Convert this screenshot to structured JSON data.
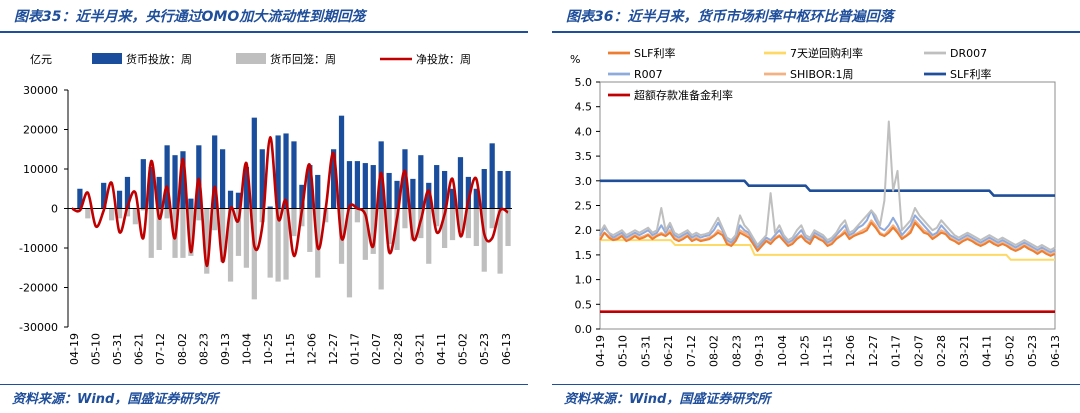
{
  "charts": [
    {
      "figure_title": "图表35：近半月来，央行通过OMO加大流动性到期回笼",
      "source": "资料来源：Wind，国盛证券研究所",
      "chart_data": {
        "type": "bar",
        "ylabel": "亿元",
        "ylim": [
          -30000,
          30000
        ],
        "yticks": [
          -30000,
          -20000,
          -10000,
          0,
          10000,
          20000,
          30000
        ],
        "x_tick_labels": [
          "04-19",
          "05-10",
          "05-31",
          "06-21",
          "07-12",
          "08-02",
          "08-23",
          "09-13",
          "10-04",
          "10-25",
          "11-15",
          "12-06",
          "12-27",
          "01-17",
          "02-07",
          "02-28",
          "03-21",
          "04-11",
          "05-02",
          "05-23",
          "06-13"
        ],
        "legend": [
          "货币投放：周",
          "货币回笼：周",
          "净投放：周"
        ],
        "series": [
          {
            "name": "货币投放：周",
            "type": "bar",
            "color": "#1a4e9c",
            "values": [
              0,
              5000,
              0,
              0,
              6500,
              0,
              4500,
              8000,
              0,
              12500,
              10500,
              8000,
              16000,
              13500,
              14500,
              2500,
              16000,
              0,
              18500,
              15000,
              4500,
              4000,
              10500,
              23000,
              15000,
              500,
              18500,
              19000,
              17000,
              6000,
              11000,
              8500,
              0,
              15000,
              23500,
              12000,
              12000,
              11500,
              11000,
              17000,
              9000,
              7000,
              15000,
              7500,
              13500,
              6500,
              11000,
              9500,
              5000,
              13000,
              8000,
              5000,
              10000,
              16500,
              9500,
              9500
            ]
          },
          {
            "name": "货币回笼：周",
            "type": "bar",
            "color": "#bfbfbf",
            "values": [
              0,
              -500,
              -2500,
              0,
              0,
              -3000,
              -2500,
              -2000,
              -4000,
              -500,
              -12500,
              -10500,
              -2500,
              -12500,
              -12500,
              -12000,
              -3000,
              -16500,
              -5500,
              -13500,
              -18500,
              -12000,
              -15000,
              -23000,
              -3500,
              -17500,
              -18500,
              -18000,
              -7000,
              -4500,
              -11000,
              -17500,
              -3500,
              0,
              -14000,
              -22500,
              -3500,
              -13000,
              -11500,
              -20500,
              -9000,
              -10500,
              -5000,
              -8000,
              -7500,
              -14000,
              -4500,
              -10000,
              -8000,
              -6000,
              -7500,
              -9500,
              -16000,
              -5000,
              -16500,
              -9500
            ]
          },
          {
            "name": "净投放：周",
            "type": "line",
            "color": "#c00000",
            "values": [
              0,
              -500,
              4000,
              -4500,
              -500,
              6500,
              -6000,
              500,
              4000,
              -7500,
              12000,
              -2500,
              5500,
              -7500,
              12500,
              -11000,
              7500,
              -14500,
              5500,
              -13500,
              0,
              -3000,
              11500,
              -9500,
              -4500,
              18000,
              -2500,
              2000,
              -12000,
              -500,
              11000,
              -10000,
              0,
              14000,
              -7500,
              500,
              0,
              -1500,
              -9500,
              9000,
              -11000,
              -2500,
              9500,
              -7500,
              -3000,
              4500,
              -6000,
              -1500,
              7500,
              -7000,
              2000,
              7500,
              -6500,
              -7500,
              -500,
              -1000
            ]
          }
        ]
      }
    },
    {
      "figure_title": "图表36：近半月来，货币市场利率中枢环比普遍回落",
      "source": "资料来源：Wind，国盛证券研究所",
      "chart_data": {
        "type": "line",
        "ylabel": "%",
        "ylim": [
          0,
          5.0
        ],
        "yticks": [
          "0.0",
          "0.5",
          "1.0",
          "1.5",
          "2.0",
          "2.5",
          "3.0",
          "3.5",
          "4.0",
          "4.5",
          "5.0"
        ],
        "x_tick_labels": [
          "04-19",
          "05-10",
          "05-31",
          "06-21",
          "07-12",
          "08-02",
          "08-23",
          "09-13",
          "10-04",
          "10-25",
          "11-15",
          "12-06",
          "12-27",
          "01-17",
          "02-07",
          "02-28",
          "03-21",
          "04-11",
          "05-02",
          "05-23",
          "06-13"
        ],
        "legend": [
          "SLF利率",
          "7天逆回购利率",
          "DR007",
          "R007",
          "SHIBOR:1周",
          "SLF利率",
          "超额存款准备金利率"
        ],
        "series": [
          {
            "name": "超额存款准备金利率",
            "color": "#c00000",
            "values": [
              0.35,
              0.35
            ]
          },
          {
            "name": "7天逆回购利率",
            "color": "#ffd966",
            "values": [
              1.8,
              1.8,
              1.8,
              1.8,
              1.8,
              1.8,
              1.8,
              1.8,
              1.8,
              1.8,
              1.8,
              1.8,
              1.8,
              1.8,
              1.8,
              1.8,
              1.8,
              1.7,
              1.7,
              1.7,
              1.7,
              1.7,
              1.7,
              1.7,
              1.7,
              1.7,
              1.7,
              1.7,
              1.7,
              1.7,
              1.7,
              1.7,
              1.7,
              1.7,
              1.7,
              1.5,
              1.5,
              1.5,
              1.5,
              1.5,
              1.5,
              1.5,
              1.5,
              1.5,
              1.5,
              1.5,
              1.5,
              1.5,
              1.5,
              1.5,
              1.5,
              1.5,
              1.5,
              1.5,
              1.5,
              1.5,
              1.5,
              1.5,
              1.5,
              1.5,
              1.5,
              1.5,
              1.5,
              1.5,
              1.5,
              1.5,
              1.5,
              1.5,
              1.5,
              1.5,
              1.5,
              1.5,
              1.5,
              1.5,
              1.5,
              1.5,
              1.5,
              1.5,
              1.5,
              1.5,
              1.5,
              1.5,
              1.5,
              1.5,
              1.5,
              1.5,
              1.5,
              1.5,
              1.5,
              1.5,
              1.5,
              1.5,
              1.5,
              1.4,
              1.4,
              1.4,
              1.4,
              1.4,
              1.4,
              1.4,
              1.4,
              1.4,
              1.4,
              1.4
            ]
          },
          {
            "name": "SLF利率",
            "color": "#1f4e9b",
            "values": [
              3.0,
              3.0,
              3.0,
              3.0,
              3.0,
              3.0,
              3.0,
              3.0,
              3.0,
              3.0,
              3.0,
              3.0,
              3.0,
              3.0,
              3.0,
              3.0,
              3.0,
              3.0,
              3.0,
              3.0,
              3.0,
              3.0,
              3.0,
              3.0,
              3.0,
              3.0,
              3.0,
              3.0,
              3.0,
              3.0,
              3.0,
              3.0,
              3.0,
              3.0,
              2.9,
              2.9,
              2.9,
              2.9,
              2.9,
              2.9,
              2.9,
              2.9,
              2.9,
              2.9,
              2.9,
              2.9,
              2.9,
              2.9,
              2.8,
              2.8,
              2.8,
              2.8,
              2.8,
              2.8,
              2.8,
              2.8,
              2.8,
              2.8,
              2.8,
              2.8,
              2.8,
              2.8,
              2.8,
              2.8,
              2.8,
              2.8,
              2.8,
              2.8,
              2.8,
              2.8,
              2.8,
              2.8,
              2.8,
              2.8,
              2.8,
              2.8,
              2.8,
              2.8,
              2.8,
              2.8,
              2.8,
              2.8,
              2.8,
              2.8,
              2.8,
              2.8,
              2.8,
              2.8,
              2.8,
              2.8,
              2.7,
              2.7,
              2.7,
              2.7,
              2.7,
              2.7,
              2.7,
              2.7,
              2.7,
              2.7,
              2.7,
              2.7,
              2.7,
              2.7,
              2.7
            ]
          },
          {
            "name": "SHIBOR:1周",
            "color": "#f4b183",
            "values": [
              1.85,
              1.95,
              1.88,
              1.82,
              1.85,
              1.9,
              1.8,
              1.85,
              1.9,
              1.85,
              1.88,
              1.92,
              1.85,
              1.9,
              1.95,
              1.9,
              2.0,
              1.85,
              1.8,
              1.85,
              1.9,
              1.8,
              1.85,
              1.8,
              1.82,
              1.85,
              1.9,
              2.0,
              1.95,
              1.75,
              1.7,
              1.8,
              2.0,
              1.95,
              1.9,
              1.75,
              1.6,
              1.7,
              1.8,
              1.75,
              1.85,
              1.9,
              1.8,
              1.7,
              1.75,
              1.85,
              1.9,
              1.8,
              1.75,
              1.9,
              1.85,
              1.8,
              1.7,
              1.75,
              1.85,
              1.9,
              2.0,
              1.85,
              1.9,
              1.95,
              2.0,
              2.05,
              2.2,
              2.1,
              1.95,
              1.9,
              2.0,
              2.1,
              2.0,
              1.85,
              1.9,
              2.0,
              2.2,
              2.1,
              2.0,
              1.95,
              1.85,
              1.9,
              2.0,
              1.95,
              1.85,
              1.8,
              1.75,
              1.8,
              1.85,
              1.8,
              1.75,
              1.7,
              1.75,
              1.8,
              1.75,
              1.7,
              1.75,
              1.7,
              1.65,
              1.6,
              1.65,
              1.7,
              1.65,
              1.6,
              1.55,
              1.6,
              1.55,
              1.5,
              1.55
            ]
          },
          {
            "name": "R007",
            "color": "#8faadc",
            "values": [
              1.9,
              2.05,
              1.95,
              1.85,
              1.9,
              1.95,
              1.85,
              1.9,
              1.95,
              1.9,
              1.95,
              2.0,
              1.9,
              1.95,
              2.1,
              1.95,
              2.1,
              1.9,
              1.85,
              1.9,
              1.95,
              1.85,
              1.9,
              1.85,
              1.88,
              1.9,
              2.0,
              2.15,
              2.0,
              1.8,
              1.75,
              1.85,
              2.1,
              2.0,
              1.95,
              1.8,
              1.65,
              1.75,
              1.85,
              1.8,
              1.9,
              2.0,
              1.85,
              1.75,
              1.8,
              1.9,
              2.0,
              1.85,
              1.8,
              1.95,
              1.9,
              1.85,
              1.75,
              1.8,
              1.9,
              2.0,
              2.1,
              1.9,
              1.95,
              2.05,
              2.1,
              2.2,
              2.4,
              2.2,
              2.05,
              2.0,
              2.1,
              2.25,
              2.1,
              1.9,
              2.0,
              2.1,
              2.3,
              2.2,
              2.1,
              2.0,
              1.9,
              1.95,
              2.1,
              2.0,
              1.9,
              1.85,
              1.8,
              1.85,
              1.9,
              1.85,
              1.8,
              1.75,
              1.8,
              1.85,
              1.8,
              1.75,
              1.8,
              1.75,
              1.7,
              1.65,
              1.7,
              1.75,
              1.7,
              1.65,
              1.6,
              1.65,
              1.6,
              1.55,
              1.6
            ]
          },
          {
            "name": "DR007",
            "color": "#bfbfbf",
            "values": [
              1.95,
              2.1,
              1.95,
              1.9,
              1.95,
              2.0,
              1.9,
              1.95,
              2.0,
              1.95,
              2.0,
              2.05,
              1.95,
              2.0,
              2.45,
              2.0,
              2.15,
              1.95,
              1.9,
              1.95,
              2.0,
              1.9,
              1.95,
              1.9,
              1.92,
              1.95,
              2.1,
              2.25,
              2.05,
              1.85,
              1.8,
              1.9,
              2.3,
              2.1,
              2.0,
              1.85,
              1.7,
              1.8,
              1.9,
              2.75,
              1.95,
              2.1,
              1.9,
              1.8,
              1.85,
              2.0,
              2.1,
              1.9,
              1.85,
              2.0,
              1.95,
              1.9,
              1.8,
              1.85,
              1.95,
              2.1,
              2.2,
              1.95,
              2.0,
              2.1,
              2.2,
              2.3,
              2.4,
              2.3,
              2.1,
              2.6,
              4.2,
              2.8,
              3.2,
              2.0,
              2.1,
              2.2,
              2.45,
              2.3,
              2.2,
              2.1,
              2.0,
              2.05,
              2.2,
              2.1,
              2.0,
              1.9,
              1.85,
              1.9,
              1.95,
              1.9,
              1.85,
              1.8,
              1.85,
              1.9,
              1.85,
              1.8,
              1.85,
              1.8,
              1.75,
              1.7,
              1.75,
              1.8,
              1.75,
              1.7,
              1.65,
              1.7,
              1.65,
              1.6,
              1.65
            ]
          },
          {
            "name": "SLF利率",
            "color": "#ed7d31",
            "values": [
              1.8,
              1.95,
              1.85,
              1.8,
              1.82,
              1.88,
              1.78,
              1.82,
              1.88,
              1.82,
              1.85,
              1.9,
              1.82,
              1.88,
              1.92,
              1.88,
              1.95,
              1.82,
              1.78,
              1.82,
              1.88,
              1.78,
              1.82,
              1.78,
              1.8,
              1.82,
              1.88,
              1.95,
              1.9,
              1.72,
              1.68,
              1.78,
              1.95,
              1.9,
              1.85,
              1.72,
              1.58,
              1.68,
              1.78,
              1.72,
              1.82,
              1.88,
              1.78,
              1.68,
              1.72,
              1.82,
              1.88,
              1.78,
              1.72,
              1.88,
              1.82,
              1.78,
              1.68,
              1.72,
              1.82,
              1.88,
              1.95,
              1.82,
              1.88,
              1.92,
              1.95,
              2.0,
              2.15,
              2.05,
              1.92,
              1.88,
              1.95,
              2.05,
              1.95,
              1.82,
              1.88,
              1.95,
              2.15,
              2.05,
              1.95,
              1.92,
              1.82,
              1.88,
              1.95,
              1.92,
              1.82,
              1.78,
              1.72,
              1.78,
              1.82,
              1.78,
              1.72,
              1.68,
              1.72,
              1.78,
              1.72,
              1.68,
              1.72,
              1.68,
              1.62,
              1.58,
              1.62,
              1.68,
              1.62,
              1.58,
              1.52,
              1.58,
              1.52,
              1.48,
              1.52
            ]
          }
        ]
      }
    }
  ]
}
